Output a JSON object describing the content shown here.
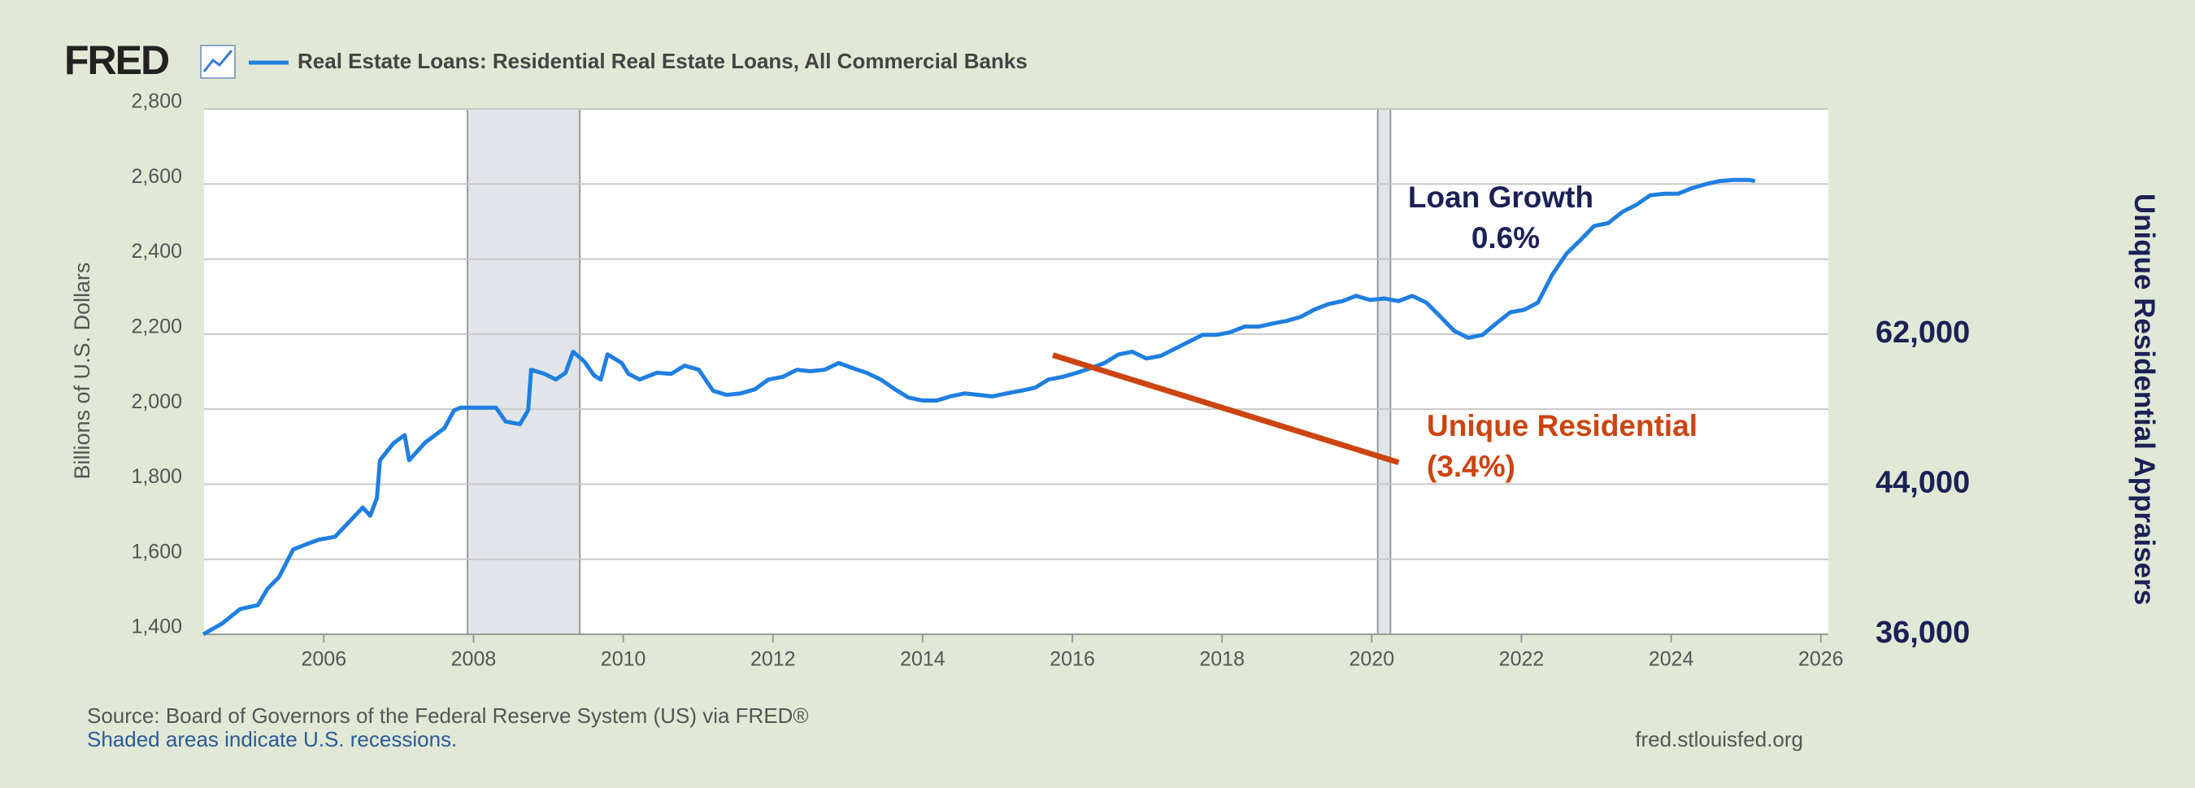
{
  "chart_data": {
    "type": "line",
    "brand": "FRED",
    "title": "Real Estate Loans: Residential Real Estate Loans, All Commercial Banks",
    "ylabel": "Billions of U.S. Dollars",
    "y2label": "Unique Residential Appraisers",
    "source": "Source: Board of Governors of the Federal Reserve System (US) via FRED®",
    "recession_note": "Shaded areas indicate U.S. recessions.",
    "site": "fred.stlouisfed.org",
    "xlim": [
      2004.4,
      2026.1
    ],
    "xticks": [
      2006,
      2008,
      2010,
      2012,
      2014,
      2016,
      2018,
      2020,
      2022,
      2024,
      2026
    ],
    "ylim": [
      1400,
      2800
    ],
    "yticks": [
      {
        "value": 1400,
        "label": "1,400"
      },
      {
        "value": 1600,
        "label": "1,600"
      },
      {
        "value": 1800,
        "label": "1,800"
      },
      {
        "value": 2000,
        "label": "2,000"
      },
      {
        "value": 2200,
        "label": "2,200"
      },
      {
        "value": 2400,
        "label": "2,400"
      },
      {
        "value": 2600,
        "label": "2,600"
      },
      {
        "value": 2800,
        "label": "2,800"
      }
    ],
    "y2ticks": [
      {
        "value": 36000,
        "label": "36,000"
      },
      {
        "value": 44000,
        "label": "44,000"
      },
      {
        "value": 62000,
        "label": "62,000"
      }
    ],
    "grid": true,
    "recessions": [
      [
        2007.92,
        2009.42
      ],
      [
        2020.08,
        2020.25
      ]
    ],
    "x": [
      2004.39,
      2004.65,
      2004.88,
      2005.12,
      2005.25,
      2005.4,
      2005.59,
      2005.78,
      2005.93,
      2006.15,
      2006.34,
      2006.52,
      2006.62,
      2006.71,
      2006.75,
      2006.93,
      2007.08,
      2007.14,
      2007.36,
      2007.61,
      2007.74,
      2007.83,
      2008.11,
      2008.3,
      2008.43,
      2008.62,
      2008.73,
      2008.77,
      2008.95,
      2009.1,
      2009.23,
      2009.33,
      2009.48,
      2009.61,
      2009.7,
      2009.79,
      2009.98,
      2010.07,
      2010.22,
      2010.45,
      2010.64,
      2010.82,
      2011.01,
      2011.2,
      2011.38,
      2011.57,
      2011.76,
      2011.94,
      2012.13,
      2012.32,
      2012.5,
      2012.69,
      2012.88,
      2013.07,
      2013.25,
      2013.44,
      2013.63,
      2013.81,
      2014.0,
      2014.19,
      2014.37,
      2014.56,
      2014.75,
      2014.93,
      2015.12,
      2015.31,
      2015.5,
      2015.68,
      2015.87,
      2016.06,
      2016.24,
      2016.43,
      2016.62,
      2016.8,
      2016.99,
      2017.18,
      2017.36,
      2017.55,
      2017.74,
      2017.93,
      2018.11,
      2018.3,
      2018.49,
      2018.67,
      2018.86,
      2019.05,
      2019.23,
      2019.42,
      2019.61,
      2019.79,
      2019.98,
      2020.17,
      2020.36,
      2020.54,
      2020.73,
      2020.92,
      2021.1,
      2021.29,
      2021.48,
      2021.66,
      2021.85,
      2022.04,
      2022.22,
      2022.41,
      2022.6,
      2022.79,
      2022.97,
      2023.16,
      2023.35,
      2023.53,
      2023.72,
      2023.91,
      2024.09,
      2024.28,
      2024.47,
      2024.65,
      2024.84,
      2025.03,
      2025.12
    ],
    "series": [
      {
        "name": "Real Estate Loans: Residential Real Estate Loans, All Commercial Banks",
        "color": "#1f7fe0",
        "values": [
          1400,
          1430,
          1467,
          1478,
          1522,
          1552,
          1626,
          1641,
          1652,
          1660,
          1700,
          1738,
          1716,
          1764,
          1864,
          1909,
          1931,
          1864,
          1912,
          1949,
          1997,
          2004,
          2004,
          2004,
          1967,
          1960,
          1997,
          2105,
          2094,
          2079,
          2097,
          2153,
          2127,
          2090,
          2079,
          2146,
          2123,
          2094,
          2079,
          2097,
          2094,
          2116,
          2105,
          2049,
          2038,
          2042,
          2053,
          2079,
          2086,
          2105,
          2101,
          2105,
          2123,
          2109,
          2097,
          2079,
          2053,
          2031,
          2023,
          2023,
          2034,
          2042,
          2038,
          2034,
          2042,
          2049,
          2057,
          2079,
          2086,
          2097,
          2109,
          2123,
          2146,
          2153,
          2135,
          2142,
          2160,
          2179,
          2198,
          2198,
          2205,
          2220,
          2220,
          2228,
          2235,
          2246,
          2265,
          2280,
          2288,
          2302,
          2291,
          2295,
          2288,
          2302,
          2284,
          2246,
          2209,
          2190,
          2198,
          2228,
          2258,
          2265,
          2284,
          2358,
          2414,
          2451,
          2488,
          2496,
          2526,
          2544,
          2570,
          2574,
          2574,
          2589,
          2600,
          2608,
          2611,
          2611,
          2608
        ]
      }
    ],
    "annotation_line": {
      "x": [
        2015.74,
        2020.36
      ],
      "y": [
        2144,
        1858
      ],
      "color": "#cc4410"
    },
    "annotations": [
      {
        "lines": [
          "Loan Growth",
          "0.6%"
        ],
        "color": "#1b2157"
      },
      {
        "lines": [
          "Unique Residential",
          "(3.4%)"
        ],
        "color": "#cc4410"
      }
    ]
  }
}
